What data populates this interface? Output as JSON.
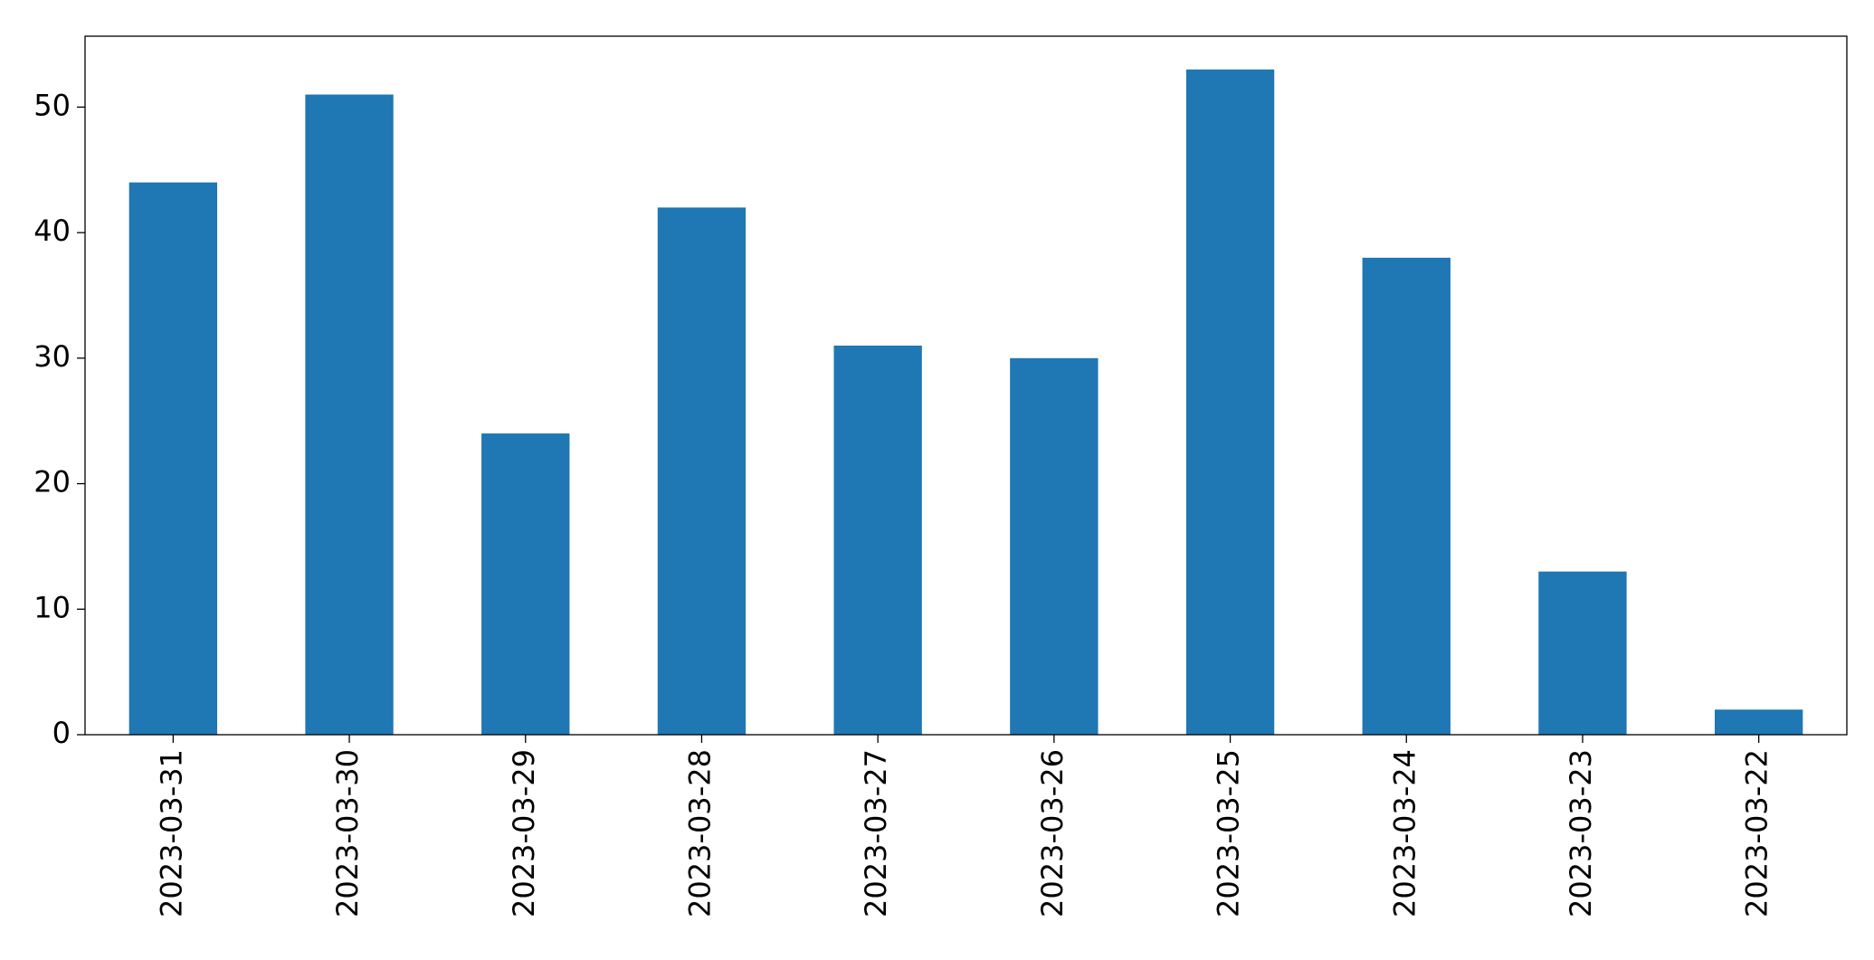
{
  "chart_data": {
    "type": "bar",
    "categories": [
      "2023-03-31",
      "2023-03-30",
      "2023-03-29",
      "2023-03-28",
      "2023-03-27",
      "2023-03-26",
      "2023-03-25",
      "2023-03-24",
      "2023-03-23",
      "2023-03-22"
    ],
    "values": [
      44,
      51,
      24,
      42,
      31,
      30,
      53,
      38,
      13,
      2
    ],
    "color": "#1f77b4",
    "ylim": [
      0,
      55.65
    ],
    "yticks": [
      0,
      10,
      20,
      30,
      40,
      50
    ],
    "grid": false
  }
}
